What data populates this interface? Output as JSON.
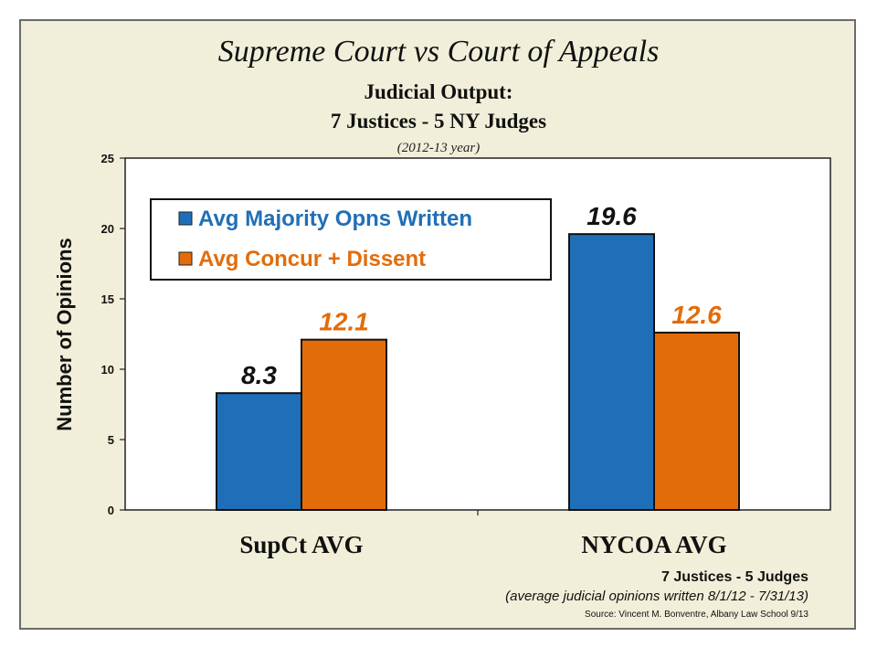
{
  "slide": {
    "title": "Supreme Court vs Court of Appeals",
    "subtitle_line1": "Judicial Output:",
    "subtitle_line2": "7 Justices - 5 NY Judges",
    "period": "(2012-13 year)",
    "footnote_line1": "7 Justices -  5 Judges",
    "footnote_line2": "(average judicial opinions written 8/1/12 - 7/31/13)",
    "source": "Source:  Vincent M. Bonventre,  Albany Law School  9/13"
  },
  "colors": {
    "background": "#f1efd9",
    "plot_area": "#ffffff",
    "majority": "#1f6fb8",
    "concur_dissent": "#e36c0a",
    "majority_label": "#111111",
    "concur_label": "#e36c0a"
  },
  "chart_data": {
    "type": "bar",
    "title": "",
    "xlabel": "",
    "ylabel": "Number of Opinions",
    "ylim": [
      0,
      25
    ],
    "yticks": [
      0,
      5,
      10,
      15,
      20,
      25
    ],
    "grid": false,
    "legend_position": "top-left",
    "categories": [
      "SupCt AVG",
      "NYCOA AVG"
    ],
    "series": [
      {
        "name": "Avg Majority Opns Written",
        "values": [
          8.3,
          19.6
        ],
        "color": "#1f6fb8",
        "label_color": "#111111"
      },
      {
        "name": "Avg Concur + Dissent",
        "values": [
          12.1,
          12.6
        ],
        "color": "#e36c0a",
        "label_color": "#e36c0a"
      }
    ]
  }
}
